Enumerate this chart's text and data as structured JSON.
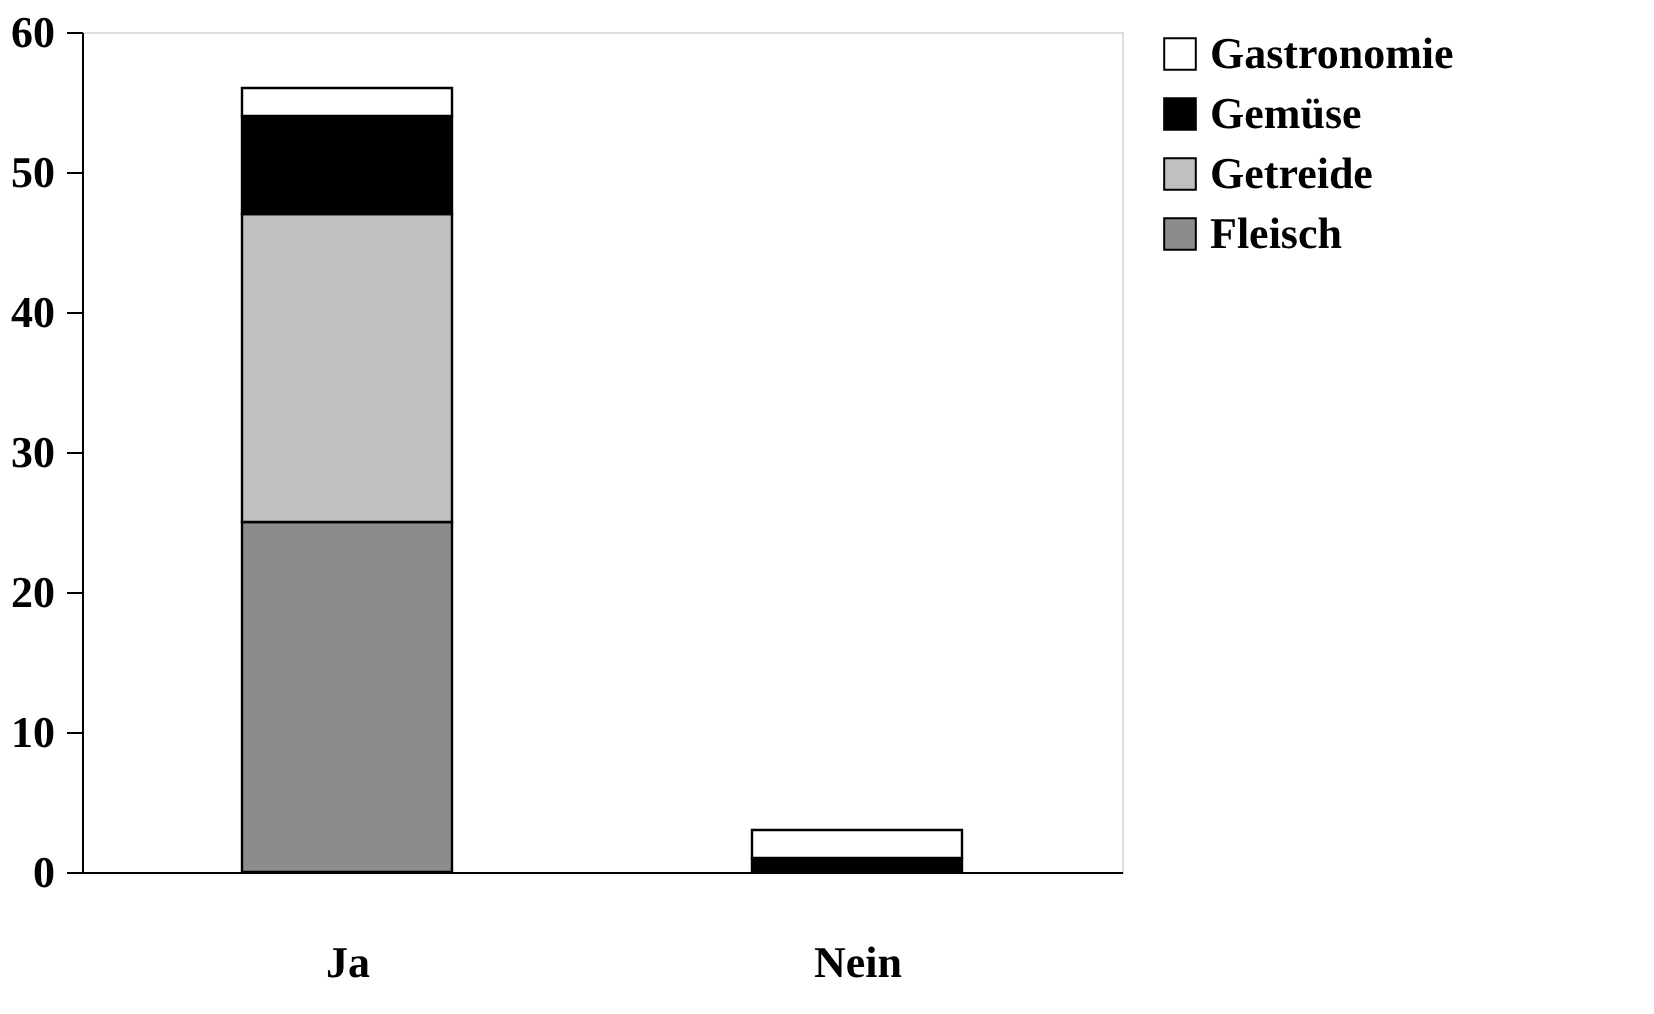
{
  "chart_data": {
    "type": "bar",
    "stacked": true,
    "categories": [
      "Ja",
      "Nein"
    ],
    "series": [
      {
        "name": "Fleisch",
        "color": "#8c8c8c",
        "values": [
          25,
          0
        ]
      },
      {
        "name": "Getreide",
        "color": "#c0c0c0",
        "values": [
          22,
          0
        ]
      },
      {
        "name": "Gemüse",
        "color": "#000000",
        "values": [
          7,
          1
        ]
      },
      {
        "name": "Gastronomie",
        "color": "#ffffff",
        "values": [
          2,
          2
        ]
      }
    ],
    "ylim": [
      0,
      60
    ],
    "yticks": [
      0,
      10,
      20,
      30,
      40,
      50,
      60
    ],
    "grid": false,
    "legend": "right"
  }
}
